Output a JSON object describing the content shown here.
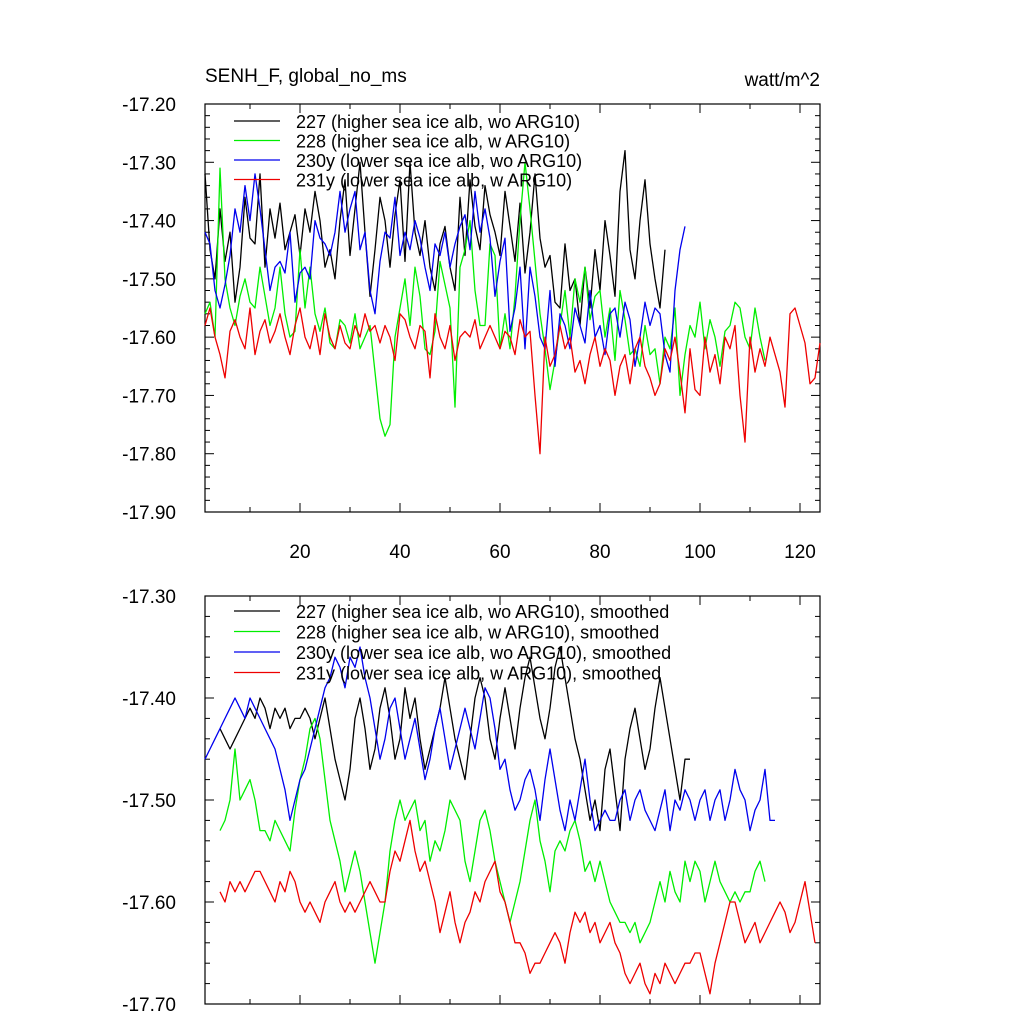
{
  "chart_data": [
    {
      "type": "line",
      "title": "SENH_F, global_no_ms",
      "units": "watt/m^2",
      "xlim": [
        1,
        124
      ],
      "ylim": [
        -17.9,
        -17.2
      ],
      "yticks": [
        "-17.20",
        "-17.30",
        "-17.40",
        "-17.50",
        "-17.60",
        "-17.70",
        "-17.80",
        "-17.90"
      ],
      "xticks": [
        "20",
        "40",
        "60",
        "80",
        "100",
        "120"
      ],
      "legend": "top-left",
      "series": [
        {
          "name": "227 (higher sea ice alb, wo ARG10)",
          "color": "#000000",
          "x_start": 1,
          "values": [
            -17.32,
            -17.45,
            -17.5,
            -17.38,
            -17.47,
            -17.42,
            -17.54,
            -17.48,
            -17.36,
            -17.43,
            -17.44,
            -17.32,
            -17.48,
            -17.38,
            -17.43,
            -17.37,
            -17.45,
            -17.42,
            -17.39,
            -17.46,
            -17.38,
            -17.42,
            -17.35,
            -17.4,
            -17.48,
            -17.45,
            -17.5,
            -17.4,
            -17.33,
            -17.46,
            -17.38,
            -17.3,
            -17.42,
            -17.53,
            -17.45,
            -17.36,
            -17.4,
            -17.48,
            -17.39,
            -17.33,
            -17.47,
            -17.3,
            -17.42,
            -17.46,
            -17.4,
            -17.48,
            -17.52,
            -17.44,
            -17.41,
            -17.48,
            -17.52,
            -17.36,
            -17.46,
            -17.33,
            -17.41,
            -17.45,
            -17.34,
            -17.39,
            -17.42,
            -17.46,
            -17.35,
            -17.41,
            -17.47,
            -17.37,
            -17.49,
            -17.42,
            -17.32,
            -17.43,
            -17.48,
            -17.46,
            -17.54,
            -17.55,
            -17.44,
            -17.52,
            -17.5,
            -17.58,
            -17.48,
            -17.55,
            -17.45,
            -17.52,
            -17.4,
            -17.46,
            -17.53,
            -17.35,
            -17.28,
            -17.45,
            -17.5,
            -17.4,
            -17.33,
            -17.44,
            -17.5,
            -17.55,
            -17.45
          ]
        },
        {
          "name": "228 (higher sea ice alb, w ARG10)",
          "color": "#00ee00",
          "x_start": 1,
          "values": [
            -17.56,
            -17.54,
            -17.6,
            -17.31,
            -17.5,
            -17.55,
            -17.58,
            -17.53,
            -17.5,
            -17.54,
            -17.55,
            -17.48,
            -17.53,
            -17.58,
            -17.55,
            -17.48,
            -17.56,
            -17.6,
            -17.59,
            -17.45,
            -17.55,
            -17.48,
            -17.56,
            -17.59,
            -17.55,
            -17.61,
            -17.62,
            -17.57,
            -17.58,
            -17.61,
            -17.56,
            -17.62,
            -17.6,
            -17.58,
            -17.66,
            -17.74,
            -17.77,
            -17.75,
            -17.6,
            -17.55,
            -17.5,
            -17.58,
            -17.48,
            -17.53,
            -17.62,
            -17.63,
            -17.59,
            -17.47,
            -17.51,
            -17.55,
            -17.72,
            -17.48,
            -17.45,
            -17.4,
            -17.52,
            -17.58,
            -17.58,
            -17.44,
            -17.46,
            -17.62,
            -17.56,
            -17.62,
            -17.53,
            -17.4,
            -17.3,
            -17.38,
            -17.47,
            -17.56,
            -17.62,
            -17.69,
            -17.64,
            -17.58,
            -17.52,
            -17.6,
            -17.5,
            -17.54,
            -17.48,
            -17.57,
            -17.53,
            -17.52,
            -17.6,
            -17.55,
            -17.64,
            -17.52,
            -17.57,
            -17.63,
            -17.62,
            -17.65,
            -17.58,
            -17.63,
            -17.62,
            -17.68,
            -17.6,
            -17.62,
            -17.55,
            -17.7,
            -17.63,
            -17.58,
            -17.6,
            -17.54,
            -17.62,
            -17.57,
            -17.6,
            -17.65,
            -17.59,
            -17.58,
            -17.54,
            -17.55,
            -17.6,
            -17.62,
            -17.55,
            -17.6,
            -17.64
          ]
        },
        {
          "name": "230y (lower sea ice alb, wo ARG10)",
          "color": "#0000ee",
          "x_start": 1,
          "values": [
            -17.42,
            -17.44,
            -17.52,
            -17.55,
            -17.51,
            -17.46,
            -17.38,
            -17.42,
            -17.34,
            -17.4,
            -17.32,
            -17.38,
            -17.45,
            -17.52,
            -17.48,
            -17.47,
            -17.49,
            -17.42,
            -17.54,
            -17.49,
            -17.48,
            -17.5,
            -17.4,
            -17.43,
            -17.44,
            -17.46,
            -17.42,
            -17.35,
            -17.42,
            -17.38,
            -17.35,
            -17.45,
            -17.42,
            -17.52,
            -17.56,
            -17.47,
            -17.42,
            -17.43,
            -17.36,
            -17.46,
            -17.42,
            -17.45,
            -17.4,
            -17.43,
            -17.48,
            -17.52,
            -17.44,
            -17.46,
            -17.42,
            -17.48,
            -17.44,
            -17.41,
            -17.39,
            -17.45,
            -17.35,
            -17.42,
            -17.38,
            -17.43,
            -17.53,
            -17.47,
            -17.43,
            -17.59,
            -17.55,
            -17.48,
            -17.62,
            -17.48,
            -17.53,
            -17.6,
            -17.62,
            -17.52,
            -17.65,
            -17.56,
            -17.58,
            -17.62,
            -17.55,
            -17.58,
            -17.61,
            -17.52,
            -17.6,
            -17.58,
            -17.63,
            -17.56,
            -17.55,
            -17.6,
            -17.54,
            -17.57,
            -17.65,
            -17.6,
            -17.54,
            -17.58,
            -17.55,
            -17.56,
            -17.63,
            -17.66,
            -17.52,
            -17.45,
            -17.41
          ]
        },
        {
          "name": "231y (lower sea ice alb, w ARG10)",
          "color": "#ee0000",
          "x_start": 1,
          "values": [
            -17.58,
            -17.55,
            -17.6,
            -17.63,
            -17.67,
            -17.59,
            -17.57,
            -17.6,
            -17.62,
            -17.55,
            -17.63,
            -17.59,
            -17.57,
            -17.61,
            -17.59,
            -17.56,
            -17.6,
            -17.63,
            -17.58,
            -17.55,
            -17.6,
            -17.62,
            -17.58,
            -17.63,
            -17.56,
            -17.6,
            -17.62,
            -17.58,
            -17.61,
            -17.62,
            -17.58,
            -17.6,
            -17.56,
            -17.59,
            -17.58,
            -17.61,
            -17.58,
            -17.6,
            -17.64,
            -17.56,
            -17.57,
            -17.6,
            -17.62,
            -17.58,
            -17.59,
            -17.67,
            -17.56,
            -17.6,
            -17.62,
            -17.58,
            -17.64,
            -17.6,
            -17.59,
            -17.6,
            -17.57,
            -17.62,
            -17.6,
            -17.58,
            -17.6,
            -17.62,
            -17.59,
            -17.6,
            -17.63,
            -17.57,
            -17.6,
            -17.59,
            -17.7,
            -17.8,
            -17.6,
            -17.65,
            -17.63,
            -17.58,
            -17.62,
            -17.6,
            -17.66,
            -17.64,
            -17.68,
            -17.63,
            -17.6,
            -17.65,
            -17.62,
            -17.64,
            -17.7,
            -17.65,
            -17.63,
            -17.68,
            -17.62,
            -17.6,
            -17.65,
            -17.67,
            -17.7,
            -17.68,
            -17.62,
            -17.64,
            -17.6,
            -17.66,
            -17.73,
            -17.62,
            -17.69,
            -17.7,
            -17.6,
            -17.66,
            -17.63,
            -17.68,
            -17.6,
            -17.62,
            -17.58,
            -17.7,
            -17.78,
            -17.6,
            -17.66,
            -17.62,
            -17.65,
            -17.6,
            -17.63,
            -17.66,
            -17.72,
            -17.56,
            -17.55,
            -17.58,
            -17.61,
            -17.68,
            -17.67,
            -17.61
          ]
        }
      ]
    },
    {
      "type": "line",
      "xlim": [
        1,
        124
      ],
      "ylim": [
        -17.7,
        -17.3
      ],
      "yticks": [
        "-17.30",
        "-17.40",
        "-17.50",
        "-17.60",
        "-17.70"
      ],
      "legend": "top-left",
      "series": [
        {
          "name": "227 (higher sea ice alb, wo ARG10), smoothed",
          "color": "#000000",
          "x_start": 4,
          "values": [
            -17.43,
            -17.44,
            -17.45,
            -17.44,
            -17.43,
            -17.42,
            -17.41,
            -17.42,
            -17.4,
            -17.41,
            -17.43,
            -17.41,
            -17.42,
            -17.41,
            -17.43,
            -17.42,
            -17.42,
            -17.41,
            -17.42,
            -17.44,
            -17.42,
            -17.4,
            -17.43,
            -17.46,
            -17.48,
            -17.5,
            -17.47,
            -17.42,
            -17.4,
            -17.43,
            -17.47,
            -17.45,
            -17.41,
            -17.39,
            -17.42,
            -17.46,
            -17.44,
            -17.39,
            -17.42,
            -17.4,
            -17.44,
            -17.47,
            -17.45,
            -17.43,
            -17.41,
            -17.38,
            -17.41,
            -17.44,
            -17.46,
            -17.48,
            -17.44,
            -17.4,
            -17.38,
            -17.4,
            -17.44,
            -17.46,
            -17.42,
            -17.39,
            -17.42,
            -17.45,
            -17.41,
            -17.38,
            -17.36,
            -17.39,
            -17.42,
            -17.44,
            -17.41,
            -17.37,
            -17.35,
            -17.38,
            -17.41,
            -17.44,
            -17.46,
            -17.49,
            -17.52,
            -17.5,
            -17.53,
            -17.47,
            -17.45,
            -17.49,
            -17.53,
            -17.46,
            -17.43,
            -17.41,
            -17.44,
            -17.47,
            -17.45,
            -17.41,
            -17.38,
            -17.41,
            -17.44,
            -17.47,
            -17.5,
            -17.46,
            -17.46
          ]
        },
        {
          "name": "228 (higher sea ice alb, w ARG10), smoothed",
          "color": "#00ee00",
          "x_start": 4,
          "values": [
            -17.53,
            -17.52,
            -17.5,
            -17.45,
            -17.5,
            -17.49,
            -17.48,
            -17.5,
            -17.53,
            -17.53,
            -17.54,
            -17.52,
            -17.53,
            -17.54,
            -17.55,
            -17.51,
            -17.48,
            -17.46,
            -17.43,
            -17.42,
            -17.44,
            -17.48,
            -17.52,
            -17.54,
            -17.56,
            -17.59,
            -17.57,
            -17.55,
            -17.57,
            -17.6,
            -17.63,
            -17.66,
            -17.63,
            -17.6,
            -17.55,
            -17.52,
            -17.5,
            -17.52,
            -17.51,
            -17.5,
            -17.53,
            -17.52,
            -17.56,
            -17.54,
            -17.55,
            -17.53,
            -17.5,
            -17.51,
            -17.52,
            -17.56,
            -17.58,
            -17.55,
            -17.52,
            -17.51,
            -17.53,
            -17.56,
            -17.58,
            -17.6,
            -17.62,
            -17.6,
            -17.58,
            -17.55,
            -17.52,
            -17.5,
            -17.54,
            -17.56,
            -17.59,
            -17.55,
            -17.54,
            -17.55,
            -17.53,
            -17.52,
            -17.54,
            -17.57,
            -17.56,
            -17.58,
            -17.56,
            -17.58,
            -17.6,
            -17.61,
            -17.62,
            -17.62,
            -17.63,
            -17.62,
            -17.64,
            -17.63,
            -17.62,
            -17.6,
            -17.58,
            -17.6,
            -17.57,
            -17.59,
            -17.6,
            -17.56,
            -17.58,
            -17.56,
            -17.57,
            -17.6,
            -17.58,
            -17.56,
            -17.58,
            -17.59,
            -17.6,
            -17.59,
            -17.6,
            -17.59,
            -17.59,
            -17.57,
            -17.56,
            -17.58
          ]
        },
        {
          "name": "230y (lower sea ice alb, wo ARG10), smoothed",
          "color": "#0000ee",
          "x_start": 1,
          "values": [
            -17.46,
            -17.45,
            -17.44,
            -17.43,
            -17.42,
            -17.41,
            -17.4,
            -17.41,
            -17.42,
            -17.4,
            -17.41,
            -17.42,
            -17.43,
            -17.44,
            -17.45,
            -17.47,
            -17.49,
            -17.52,
            -17.5,
            -17.48,
            -17.47,
            -17.45,
            -17.43,
            -17.41,
            -17.39,
            -17.38,
            -17.36,
            -17.37,
            -17.39,
            -17.36,
            -17.37,
            -17.35,
            -17.38,
            -17.4,
            -17.43,
            -17.46,
            -17.44,
            -17.41,
            -17.4,
            -17.43,
            -17.46,
            -17.44,
            -17.42,
            -17.45,
            -17.48,
            -17.46,
            -17.43,
            -17.41,
            -17.44,
            -17.47,
            -17.45,
            -17.43,
            -17.41,
            -17.43,
            -17.45,
            -17.42,
            -17.39,
            -17.4,
            -17.43,
            -17.47,
            -17.46,
            -17.49,
            -17.51,
            -17.5,
            -17.48,
            -17.47,
            -17.49,
            -17.52,
            -17.48,
            -17.45,
            -17.48,
            -17.51,
            -17.53,
            -17.5,
            -17.52,
            -17.49,
            -17.46,
            -17.5,
            -17.53,
            -17.52,
            -17.51,
            -17.52,
            -17.52,
            -17.5,
            -17.49,
            -17.52,
            -17.5,
            -17.49,
            -17.51,
            -17.52,
            -17.53,
            -17.51,
            -17.49,
            -17.53,
            -17.5,
            -17.51,
            -17.49,
            -17.5,
            -17.52,
            -17.5,
            -17.49,
            -17.52,
            -17.5,
            -17.49,
            -17.52,
            -17.5,
            -17.47,
            -17.49,
            -17.5,
            -17.53,
            -17.51,
            -17.5,
            -17.47,
            -17.52,
            -17.52
          ]
        },
        {
          "name": "231y (lower sea ice alb, w ARG10), smoothed",
          "color": "#ee0000",
          "x_start": 4,
          "values": [
            -17.59,
            -17.6,
            -17.58,
            -17.59,
            -17.58,
            -17.59,
            -17.58,
            -17.57,
            -17.57,
            -17.58,
            -17.59,
            -17.6,
            -17.58,
            -17.59,
            -17.57,
            -17.58,
            -17.6,
            -17.61,
            -17.6,
            -17.61,
            -17.62,
            -17.6,
            -17.59,
            -17.58,
            -17.6,
            -17.61,
            -17.6,
            -17.61,
            -17.6,
            -17.59,
            -17.58,
            -17.59,
            -17.6,
            -17.6,
            -17.57,
            -17.55,
            -17.56,
            -17.54,
            -17.52,
            -17.55,
            -17.57,
            -17.56,
            -17.58,
            -17.6,
            -17.63,
            -17.61,
            -17.59,
            -17.62,
            -17.64,
            -17.62,
            -17.61,
            -17.59,
            -17.6,
            -17.58,
            -17.57,
            -17.56,
            -17.59,
            -17.6,
            -17.62,
            -17.64,
            -17.64,
            -17.65,
            -17.67,
            -17.66,
            -17.66,
            -17.65,
            -17.64,
            -17.63,
            -17.64,
            -17.66,
            -17.63,
            -17.61,
            -17.62,
            -17.61,
            -17.63,
            -17.62,
            -17.64,
            -17.63,
            -17.62,
            -17.64,
            -17.65,
            -17.67,
            -17.68,
            -17.67,
            -17.66,
            -17.68,
            -17.69,
            -17.67,
            -17.68,
            -17.66,
            -17.67,
            -17.68,
            -17.67,
            -17.66,
            -17.66,
            -17.65,
            -17.65,
            -17.67,
            -17.69,
            -17.66,
            -17.64,
            -17.62,
            -17.6,
            -17.6,
            -17.62,
            -17.64,
            -17.63,
            -17.62,
            -17.64,
            -17.63,
            -17.62,
            -17.61,
            -17.6,
            -17.61,
            -17.63,
            -17.62,
            -17.6,
            -17.58,
            -17.61,
            -17.64
          ]
        }
      ]
    }
  ]
}
